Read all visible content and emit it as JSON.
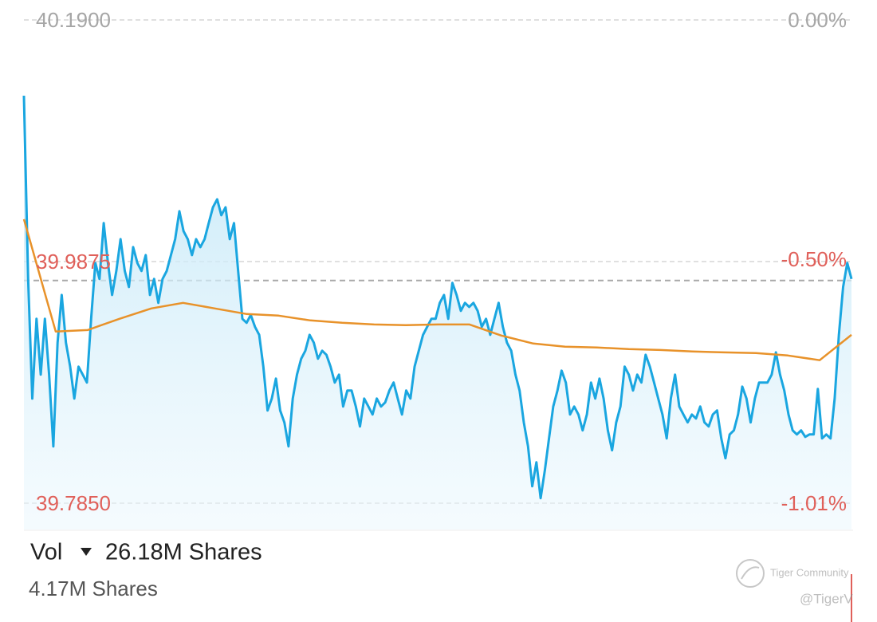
{
  "chart_data": {
    "type": "line",
    "ylim": [
      39.785,
      40.19
    ],
    "yticks": [
      {
        "value": 40.19,
        "label": "40.1900"
      },
      39.9875,
      {
        "value": 39.785,
        "label": "39.7850"
      }
    ],
    "ytick_colors": [
      "#a6a6a6",
      "#e0605a",
      "#e0605a"
    ],
    "y2lim": [
      -1.01,
      0
    ],
    "y2ticks": [
      {
        "value": 0,
        "label": "0.00%"
      },
      {
        "value": -0.5,
        "label": "-0.50%"
      },
      {
        "value": -1.01,
        "label": "-1.01%"
      }
    ],
    "grid": true,
    "reference_line": 39.9716,
    "series": [
      {
        "color": "#1aa6e0",
        "area": true,
        "values": [
          40.1265,
          39.9729,
          39.8727,
          39.9395,
          39.8927,
          39.9395,
          39.8927,
          39.8326,
          39.9195,
          39.9595,
          39.9195,
          39.8994,
          39.8727,
          39.8994,
          39.8927,
          39.8861,
          39.9395,
          39.9863,
          39.9729,
          40.0197,
          39.9863,
          39.9595,
          39.9796,
          40.0063,
          39.9796,
          39.9662,
          39.9996,
          39.9863,
          39.9796,
          39.9929,
          39.9595,
          39.9729,
          39.9529,
          39.9729,
          39.9796,
          39.9929,
          40.0063,
          40.0297,
          40.013,
          40.0063,
          39.9929,
          40.0063,
          39.9996,
          40.0063,
          40.0197,
          40.033,
          40.0397,
          40.0263,
          40.033,
          40.0063,
          40.0197,
          39.9796,
          39.9395,
          39.9362,
          39.9428,
          39.9328,
          39.9261,
          39.8994,
          39.8627,
          39.8727,
          39.8894,
          39.8627,
          39.8527,
          39.8326,
          39.8727,
          39.8927,
          39.9061,
          39.9128,
          39.9261,
          39.9195,
          39.9061,
          39.9128,
          39.9094,
          39.8994,
          39.8861,
          39.8927,
          39.866,
          39.8794,
          39.8794,
          39.866,
          39.8493,
          39.8727,
          39.866,
          39.8593,
          39.8727,
          39.866,
          39.8694,
          39.8794,
          39.8861,
          39.8727,
          39.8593,
          39.8794,
          39.8727,
          39.8994,
          39.9128,
          39.9261,
          39.9328,
          39.9395,
          39.9395,
          39.9529,
          39.9595,
          39.9395,
          39.9696,
          39.9595,
          39.9462,
          39.9529,
          39.9495,
          39.9529,
          39.9462,
          39.9328,
          39.9395,
          39.9261,
          39.9395,
          39.9529,
          39.9328,
          39.9195,
          39.9128,
          39.8927,
          39.8794,
          39.8527,
          39.8326,
          39.7992,
          39.8193,
          39.7892,
          39.8126,
          39.8393,
          39.866,
          39.8794,
          39.8961,
          39.8861,
          39.8593,
          39.866,
          39.8593,
          39.846,
          39.8593,
          39.8861,
          39.8727,
          39.8894,
          39.8727,
          39.846,
          39.8293,
          39.8527,
          39.866,
          39.8994,
          39.8927,
          39.8794,
          39.8927,
          39.8861,
          39.9094,
          39.8994,
          39.8861,
          39.8727,
          39.8593,
          39.8393,
          39.8727,
          39.8927,
          39.866,
          39.8593,
          39.8527,
          39.8593,
          39.856,
          39.866,
          39.8527,
          39.8493,
          39.8593,
          39.8627,
          39.8393,
          39.8226,
          39.8426,
          39.846,
          39.8593,
          39.8827,
          39.8727,
          39.8527,
          39.8727,
          39.8861,
          39.8861,
          39.8861,
          39.8927,
          39.9114,
          39.8927,
          39.8794,
          39.8593,
          39.846,
          39.8426,
          39.846,
          39.8406,
          39.8426,
          39.8426,
          39.8807,
          39.8393,
          39.8426,
          39.8393,
          39.8727,
          39.9261,
          39.9662,
          39.9863,
          39.9729
        ]
      },
      {
        "color": "#e8922a",
        "area": false,
        "values": [
          40.023,
          39.9288,
          39.9301,
          39.9395,
          39.9482,
          39.9529,
          39.9482,
          39.9435,
          39.9422,
          39.9382,
          39.9362,
          39.9348,
          39.9342,
          39.9348,
          39.9348,
          39.9255,
          39.9188,
          39.9161,
          39.9155,
          39.9141,
          39.9134,
          39.9121,
          39.9114,
          39.9108,
          39.9088,
          39.9048,
          39.9261
        ]
      }
    ],
    "volume": {
      "label": "Vol",
      "total": "26.18M Shares",
      "max": "4.17M Shares"
    }
  },
  "watermark": {
    "brand": "Tiger Community",
    "handle": "@TigerV"
  }
}
